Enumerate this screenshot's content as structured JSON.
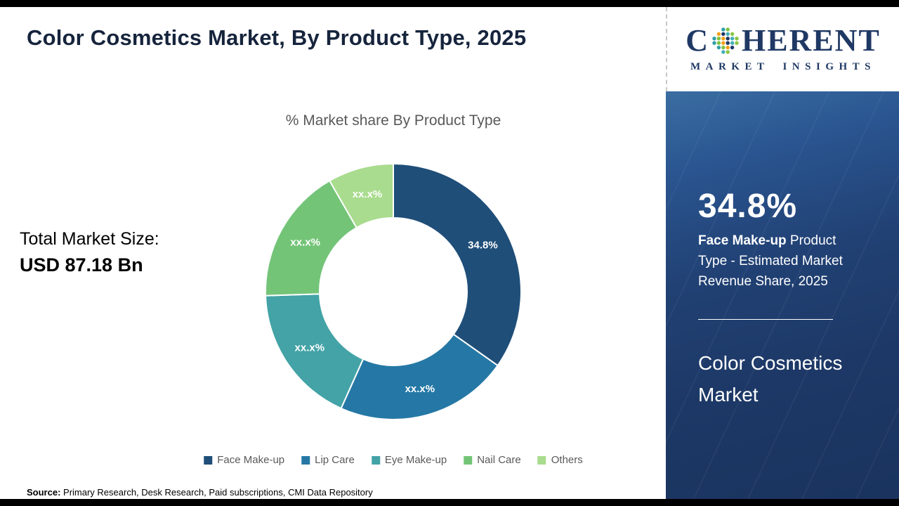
{
  "page": {
    "title": "Color Cosmetics Market, By Product Type, 2025",
    "source_label": "Source:",
    "source_text": " Primary Research, Desk Research, Paid subscriptions, CMI Data Repository"
  },
  "left_panel": {
    "total_label": "Total Market Size:",
    "total_value": "USD 87.18 Bn"
  },
  "chart_data": {
    "type": "pie",
    "subtype": "donut",
    "title": "% Market share By Product Type",
    "categories": [
      "Face Make-up",
      "Lip Care",
      "Eye Make-up",
      "Nail Care",
      "Others"
    ],
    "values": [
      34.8,
      21.9,
      17.8,
      17.2,
      8.3
    ],
    "labels": [
      "34.8%",
      "xx.x%",
      "xx.x%",
      "xx.x%",
      "xx.x%"
    ],
    "value_note": "Only the Face Make-up share (34.8%) is printed on the chart; all other slice labels are masked as xx.x% and their values are estimated from arc angles",
    "colors": [
      "#1f4e79",
      "#2578a5",
      "#43a3a6",
      "#74c478",
      "#a9dc8e"
    ],
    "label_color": "#ffffff",
    "legend_position": "bottom",
    "start_angle_deg": 0,
    "direction": "clockwise"
  },
  "sidebar": {
    "logo": {
      "brand_prefix": "C",
      "brand_suffix": "HERENT",
      "subtitle": "MARKET INSIGHTS",
      "brand_color": "#1f3864",
      "globe_colors": [
        "#2f9fa8",
        "#7fc241",
        "#f6a01a",
        "#1f3864",
        "#43b0b8",
        "#8cc63f"
      ]
    },
    "stat_value": "34.8%",
    "stat_highlight": "Face Make-up",
    "stat_rest": " Product Type - Estimated Market Revenue Share, 2025",
    "panel_title": "Color Cosmetics Market",
    "panel_color": "#1f3864"
  }
}
